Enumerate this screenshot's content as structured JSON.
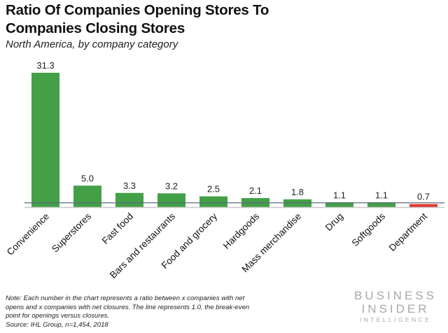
{
  "header": {
    "title": "Ratio Of Companies Opening Stores To Companies Closing Stores",
    "subtitle": "North America, by company category"
  },
  "footer": {
    "note_lines": [
      "Note: Each number in the chart represents a ratio between x companies with net",
      "opens and x companies with net closures. The line represents 1.0, the break-even",
      "point for openings versus closures.",
      "Source: IHL Group, n=1,454, 2018"
    ],
    "logo": {
      "line1": "BUSINESS",
      "line2": "INSIDER",
      "line3": "INTELLIGENCE"
    }
  },
  "colors": {
    "positive": "#43A047",
    "negative": "#E53935",
    "reference_line": "#5a6a7a",
    "axis": "#c8c8c8"
  },
  "chart_data": {
    "type": "bar",
    "title": "Ratio Of Companies Opening Stores To Companies Closing Stores",
    "subtitle": "North America, by company category",
    "xlabel": "",
    "ylabel": "",
    "categories": [
      "Convenience",
      "Superstores",
      "Fast food",
      "Bars and restaurants",
      "Food and grocery",
      "Hardgoods",
      "Mass merchandise",
      "Drug",
      "Softgoods",
      "Department"
    ],
    "values": [
      31.3,
      5.0,
      3.3,
      3.2,
      2.5,
      2.1,
      1.8,
      1.1,
      1.1,
      0.7
    ],
    "value_labels": [
      "31.3",
      "5.0",
      "3.3",
      "3.2",
      "2.5",
      "2.1",
      "1.8",
      "1.1",
      "1.1",
      "0.7"
    ],
    "reference_line": {
      "value": 1.0,
      "label": "break-even"
    },
    "ylim": [
      0,
      31.3
    ],
    "grid": false,
    "legend": "none"
  }
}
